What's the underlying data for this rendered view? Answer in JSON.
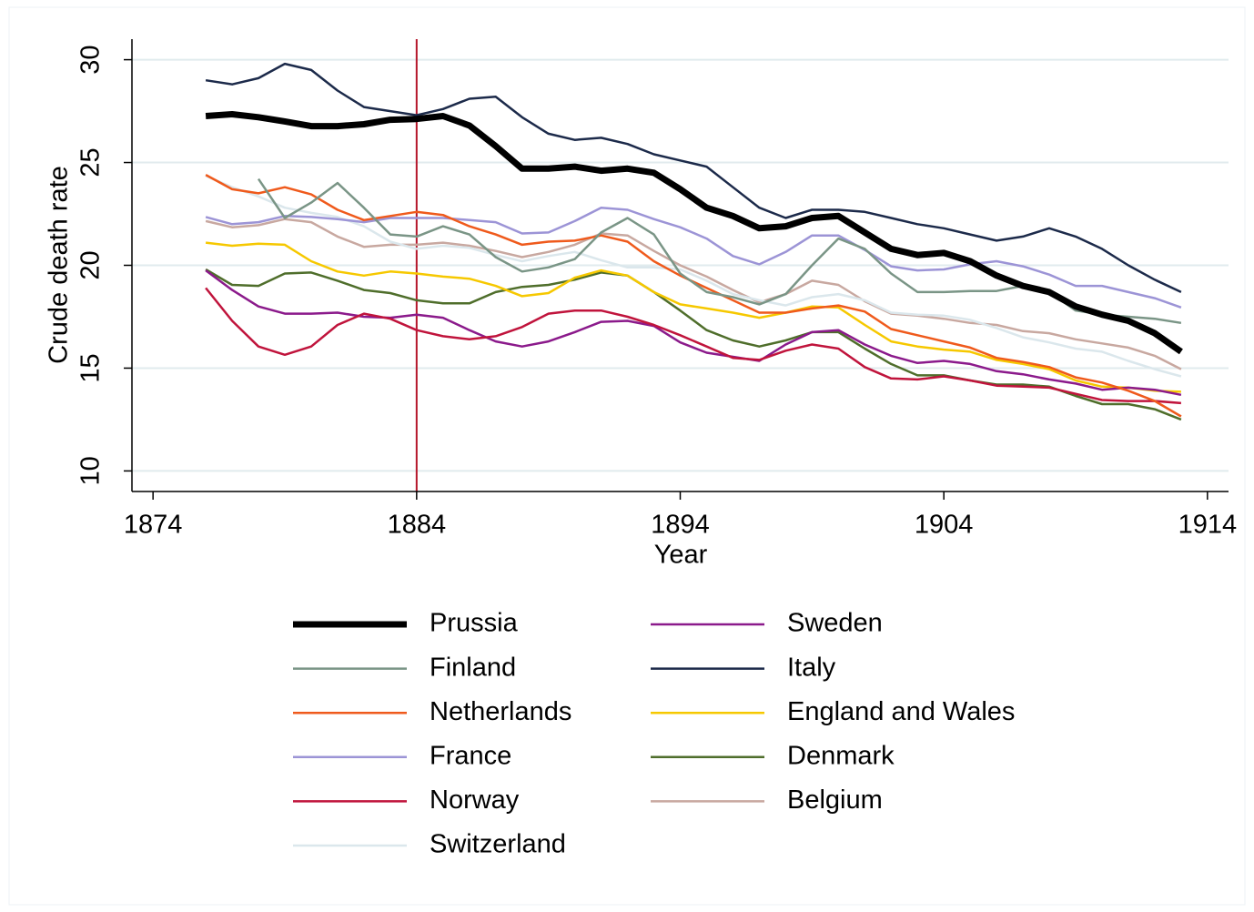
{
  "chart_data": {
    "type": "line",
    "x_label": "Year",
    "y_label": "Crude death rate",
    "xlim": [
      1873.2,
      1914.8
    ],
    "ylim": [
      9,
      31
    ],
    "xticks": [
      1874,
      1884,
      1894,
      1904,
      1914
    ],
    "yticks": [
      10,
      15,
      20,
      25,
      30
    ],
    "grid": true,
    "grid_color": "#e1ebee",
    "vline": 1884,
    "vline_color": "#b5172b",
    "legend_columns": 2,
    "x": [
      1876,
      1877,
      1878,
      1879,
      1880,
      1881,
      1882,
      1883,
      1884,
      1885,
      1886,
      1887,
      1888,
      1889,
      1890,
      1891,
      1892,
      1893,
      1894,
      1895,
      1896,
      1897,
      1898,
      1899,
      1900,
      1901,
      1902,
      1903,
      1904,
      1905,
      1906,
      1907,
      1908,
      1909,
      1910,
      1911,
      1912,
      1913
    ],
    "series": [
      {
        "name": "Prussia",
        "color": "#000000",
        "width": 7,
        "values": [
          27.26,
          27.35,
          27.2,
          27.0,
          26.77,
          26.77,
          26.86,
          27.08,
          27.12,
          27.26,
          26.8,
          25.8,
          24.7,
          24.7,
          24.8,
          24.6,
          24.7,
          24.5,
          23.7,
          22.8,
          22.4,
          21.8,
          21.9,
          22.3,
          22.4,
          21.6,
          20.8,
          20.5,
          20.6,
          20.2,
          19.5,
          19.0,
          18.7,
          18.0,
          17.6,
          17.3,
          16.7,
          15.8
        ]
      },
      {
        "name": "Finland",
        "color": "#7a9586",
        "width": 2.5,
        "values": [
          null,
          null,
          24.2,
          22.3,
          23.05,
          24.0,
          22.8,
          21.5,
          21.4,
          21.9,
          21.5,
          20.4,
          19.7,
          19.9,
          20.3,
          21.6,
          22.3,
          21.5,
          19.6,
          18.7,
          18.45,
          18.1,
          18.6,
          20.0,
          21.3,
          20.8,
          19.6,
          18.7,
          18.7,
          18.75,
          18.75,
          19.0,
          18.7,
          17.8,
          17.6,
          17.5,
          17.4,
          17.2
        ]
      },
      {
        "name": "Netherlands",
        "color": "#ef5a1c",
        "width": 2.5,
        "values": [
          24.4,
          23.7,
          23.5,
          23.8,
          23.45,
          22.7,
          22.2,
          22.4,
          22.6,
          22.45,
          21.9,
          21.5,
          21.0,
          21.15,
          21.2,
          21.45,
          21.15,
          20.2,
          19.5,
          18.9,
          18.3,
          17.7,
          17.7,
          17.9,
          18.05,
          17.75,
          16.9,
          16.6,
          16.3,
          16.0,
          15.5,
          15.3,
          15.05,
          14.55,
          14.3,
          13.9,
          13.4,
          12.65
        ]
      },
      {
        "name": "France",
        "color": "#9c94d6",
        "width": 2.5,
        "values": [
          22.35,
          22.0,
          22.1,
          22.4,
          22.35,
          22.25,
          22.1,
          22.3,
          22.3,
          22.3,
          22.2,
          22.1,
          21.55,
          21.6,
          22.15,
          22.8,
          22.7,
          22.25,
          21.85,
          21.3,
          20.45,
          20.05,
          20.65,
          21.45,
          21.45,
          20.75,
          19.95,
          19.75,
          19.8,
          20.05,
          20.2,
          19.95,
          19.55,
          19.0,
          19.0,
          18.7,
          18.4,
          17.95
        ]
      },
      {
        "name": "Norway",
        "color": "#c0143c",
        "width": 2.5,
        "values": [
          18.9,
          17.3,
          16.05,
          15.65,
          16.05,
          17.1,
          17.65,
          17.4,
          16.85,
          16.55,
          16.4,
          16.55,
          17.0,
          17.65,
          17.8,
          17.8,
          17.5,
          17.1,
          16.6,
          16.05,
          15.5,
          15.4,
          15.85,
          16.15,
          15.95,
          15.05,
          14.5,
          14.45,
          14.6,
          14.4,
          14.15,
          14.1,
          14.05,
          13.75,
          13.45,
          13.4,
          13.4,
          13.3
        ]
      },
      {
        "name": "Switzerland",
        "color": "#dbe7ec",
        "width": 2.5,
        "values": [
          24.35,
          23.8,
          23.35,
          22.8,
          22.55,
          22.35,
          21.9,
          21.15,
          20.8,
          20.95,
          20.85,
          20.5,
          20.2,
          20.45,
          20.65,
          20.25,
          19.9,
          19.9,
          19.8,
          19.25,
          18.6,
          18.3,
          18.05,
          18.45,
          18.6,
          18.3,
          17.7,
          17.6,
          17.55,
          17.35,
          16.95,
          16.5,
          16.25,
          15.95,
          15.8,
          15.35,
          14.95,
          14.6
        ]
      },
      {
        "name": "Sweden",
        "color": "#8b1a8b",
        "width": 2.5,
        "values": [
          19.75,
          18.8,
          18.0,
          17.65,
          17.65,
          17.7,
          17.5,
          17.45,
          17.6,
          17.45,
          16.85,
          16.3,
          16.05,
          16.3,
          16.75,
          17.25,
          17.3,
          17.05,
          16.25,
          15.75,
          15.55,
          15.35,
          16.15,
          16.75,
          16.85,
          16.15,
          15.6,
          15.25,
          15.35,
          15.2,
          14.85,
          14.7,
          14.45,
          14.25,
          13.95,
          14.05,
          13.95,
          13.7
        ]
      },
      {
        "name": "Italy",
        "color": "#1c2a4a",
        "width": 2.5,
        "values": [
          29.0,
          28.8,
          29.1,
          29.8,
          29.5,
          28.5,
          27.7,
          27.5,
          27.3,
          27.6,
          28.1,
          28.2,
          27.2,
          26.4,
          26.1,
          26.2,
          25.9,
          25.4,
          25.1,
          24.8,
          23.8,
          22.8,
          22.3,
          22.7,
          22.7,
          22.6,
          22.3,
          22.0,
          21.8,
          21.5,
          21.2,
          21.4,
          21.8,
          21.4,
          20.8,
          20.0,
          19.3,
          18.7
        ]
      },
      {
        "name": "England and Wales",
        "color": "#f6c800",
        "width": 2.5,
        "values": [
          21.1,
          20.95,
          21.05,
          21.0,
          20.2,
          19.7,
          19.5,
          19.7,
          19.6,
          19.45,
          19.35,
          19.0,
          18.5,
          18.65,
          19.4,
          19.75,
          19.5,
          18.7,
          18.1,
          17.9,
          17.7,
          17.45,
          17.7,
          18.0,
          17.95,
          17.1,
          16.3,
          16.05,
          15.9,
          15.8,
          15.4,
          15.2,
          14.95,
          14.4,
          14.1,
          14.05,
          13.9,
          13.85
        ]
      },
      {
        "name": "Denmark",
        "color": "#4f6e2b",
        "width": 2.5,
        "values": [
          19.8,
          19.05,
          19.0,
          19.6,
          19.65,
          19.25,
          18.8,
          18.65,
          18.3,
          18.15,
          18.15,
          18.7,
          18.95,
          19.05,
          19.3,
          19.65,
          19.5,
          18.7,
          17.8,
          16.85,
          16.35,
          16.05,
          16.35,
          16.75,
          16.75,
          15.95,
          15.2,
          14.65,
          14.65,
          14.4,
          14.2,
          14.2,
          14.1,
          13.65,
          13.25,
          13.25,
          13.0,
          12.5
        ]
      },
      {
        "name": "Belgium",
        "color": "#c8a8a0",
        "width": 2.5,
        "values": [
          22.15,
          21.85,
          21.95,
          22.25,
          22.1,
          21.4,
          20.9,
          21.0,
          21.0,
          21.1,
          20.95,
          20.7,
          20.4,
          20.65,
          21.0,
          21.55,
          21.45,
          20.7,
          20.0,
          19.45,
          18.8,
          18.2,
          18.6,
          19.25,
          19.05,
          18.25,
          17.65,
          17.55,
          17.4,
          17.2,
          17.1,
          16.8,
          16.7,
          16.4,
          16.2,
          16.0,
          15.6,
          14.95
        ]
      }
    ]
  }
}
